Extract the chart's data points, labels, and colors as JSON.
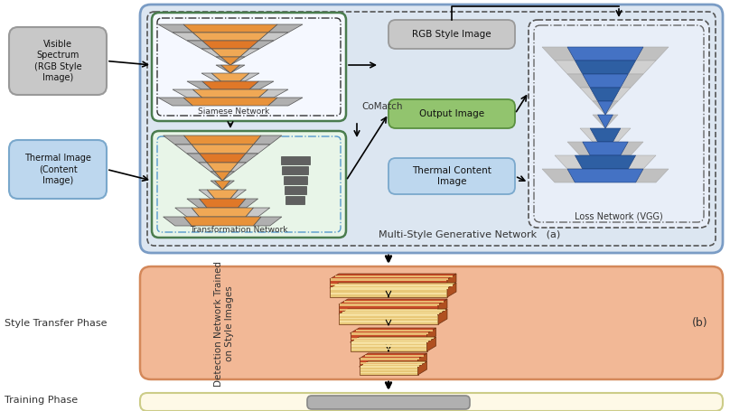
{
  "bg_color": "#ffffff",
  "panel_a_bg": "#dce6f1",
  "panel_b_bg": "#f2b896",
  "panel_c_bg": "#fef9e7",
  "text_labels": {
    "visible_spectrum": "Visible\nSpectrum\n(RGB Style\nImage)",
    "thermal_image": "Thermal Image\n(Content\nImage)",
    "rgb_style": "RGB Style Image",
    "output_image": "Output Image",
    "thermal_content": "Thermal Content\nImage",
    "loss_network": "Loss Network (VGG)",
    "siamese_network": "Siamese Network",
    "transformation_network": "Transformation Network",
    "comatch": "CoMatch",
    "multi_style": "Multi-Style Generative Network",
    "label_a": "(a)",
    "label_b": "(b)",
    "detection_network": "Detection Network Trained\non Style Images",
    "style_transfer": "Style Transfer Phase",
    "training_phase": "Training Phase"
  }
}
